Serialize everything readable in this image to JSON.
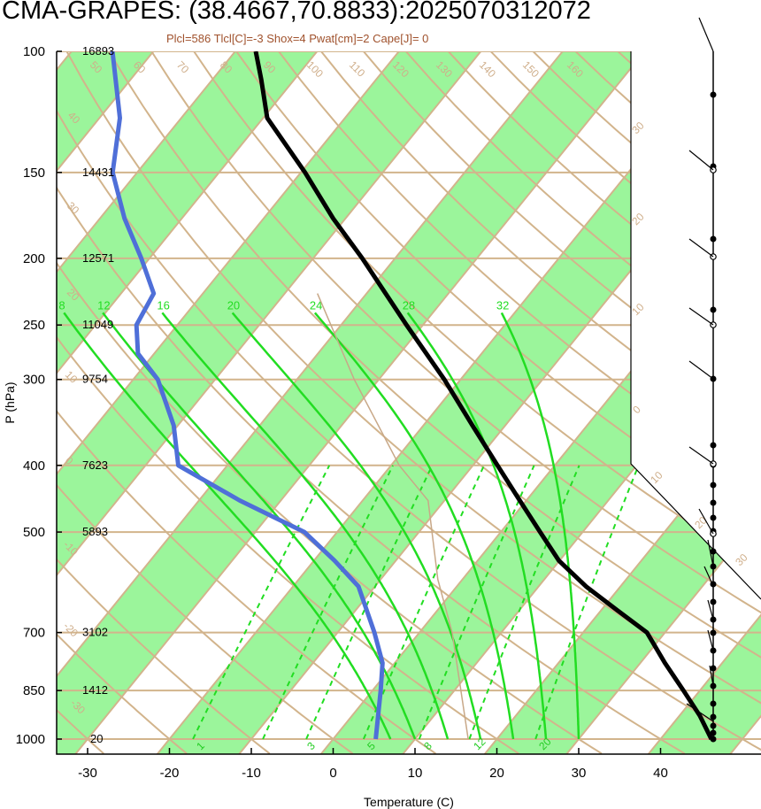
{
  "title": "CMA-GRAPES: (38.4667,70.8833):2025070312072",
  "subtitle": "Plcl=586 Tlcl[C]=-3 Shox=4 Pwat[cm]=2 Cape[J]= 0",
  "colors": {
    "isotherm_band": "#9bf59b",
    "tan_lines": "#d2b48c",
    "moist_adiabat": "#22dd22",
    "mixing_ratio": "#22dd22",
    "dewpoint": "#4f6fd8",
    "temperature": "#000000",
    "parcel": "#c8a888"
  },
  "chart_data": {
    "type": "skew-t log-p",
    "xlabel": "Temperature (C)",
    "ylabel": "P (hPa)",
    "x_ticks": [
      -30,
      -20,
      -10,
      0,
      10,
      20,
      30,
      40
    ],
    "p_ticks": [
      {
        "p": 100,
        "label": "100",
        "height": "16893"
      },
      {
        "p": 150,
        "label": "150",
        "height": "14431"
      },
      {
        "p": 200,
        "label": "200",
        "height": "12571"
      },
      {
        "p": 250,
        "label": "250",
        "height": "11049"
      },
      {
        "p": 300,
        "label": "300",
        "height": "9754"
      },
      {
        "p": 400,
        "label": "400",
        "height": "7623"
      },
      {
        "p": 500,
        "label": "500",
        "height": "5893"
      },
      {
        "p": 700,
        "label": "700",
        "height": "3102"
      },
      {
        "p": 850,
        "label": "850",
        "height": "1412"
      },
      {
        "p": 1000,
        "label": "1000",
        "height": "20"
      }
    ],
    "isotherm_labels": [
      "-30",
      "-20",
      "-10",
      "0",
      "10",
      "20",
      "30",
      "40",
      "50",
      "60",
      "70",
      "80",
      "90",
      "100",
      "110",
      "120",
      "130",
      "140",
      "150",
      "160"
    ],
    "moist_adiabat_labels": [
      "8",
      "12",
      "16",
      "20",
      "24",
      "28",
      "32"
    ],
    "mixing_ratio_labels": [
      "1",
      "3",
      "5",
      "8",
      "12",
      "20"
    ],
    "temperature": [
      {
        "p": 1000,
        "t": 46.2
      },
      {
        "p": 925,
        "t": 42.5
      },
      {
        "p": 850,
        "t": 38.0
      },
      {
        "p": 775,
        "t": 33.0
      },
      {
        "p": 700,
        "t": 27.8
      },
      {
        "p": 650,
        "t": 22.0
      },
      {
        "p": 600,
        "t": 15.8
      },
      {
        "p": 550,
        "t": 9.9
      },
      {
        "p": 500,
        "t": 4.8
      },
      {
        "p": 450,
        "t": -0.8
      },
      {
        "p": 400,
        "t": -7.0
      },
      {
        "p": 350,
        "t": -14.0
      },
      {
        "p": 300,
        "t": -22.0
      },
      {
        "p": 250,
        "t": -32.0
      },
      {
        "p": 200,
        "t": -44.0
      },
      {
        "p": 175,
        "t": -51.5
      },
      {
        "p": 150,
        "t": -59.5
      },
      {
        "p": 125,
        "t": -69.5
      },
      {
        "p": 110,
        "t": -74.0
      },
      {
        "p": 100,
        "t": -77.5
      }
    ],
    "dewpoint": [
      {
        "p": 1000,
        "t": 5.2
      },
      {
        "p": 850,
        "t": 1.0
      },
      {
        "p": 775,
        "t": -1.5
      },
      {
        "p": 700,
        "t": -5.5
      },
      {
        "p": 600,
        "t": -12.0
      },
      {
        "p": 550,
        "t": -17.5
      },
      {
        "p": 500,
        "t": -24.0
      },
      {
        "p": 450,
        "t": -35.0
      },
      {
        "p": 400,
        "t": -46.0
      },
      {
        "p": 350,
        "t": -50.5
      },
      {
        "p": 300,
        "t": -57.0
      },
      {
        "p": 275,
        "t": -62.0
      },
      {
        "p": 250,
        "t": -65.0
      },
      {
        "p": 225,
        "t": -66.0
      },
      {
        "p": 200,
        "t": -71.0
      },
      {
        "p": 175,
        "t": -77.0
      },
      {
        "p": 150,
        "t": -83.0
      },
      {
        "p": 125,
        "t": -87.5
      },
      {
        "p": 100,
        "t": -95.0
      }
    ],
    "wind_profile": {
      "note": "wind barbs along right-hand staff from 1000 to 100 hPa"
    }
  }
}
